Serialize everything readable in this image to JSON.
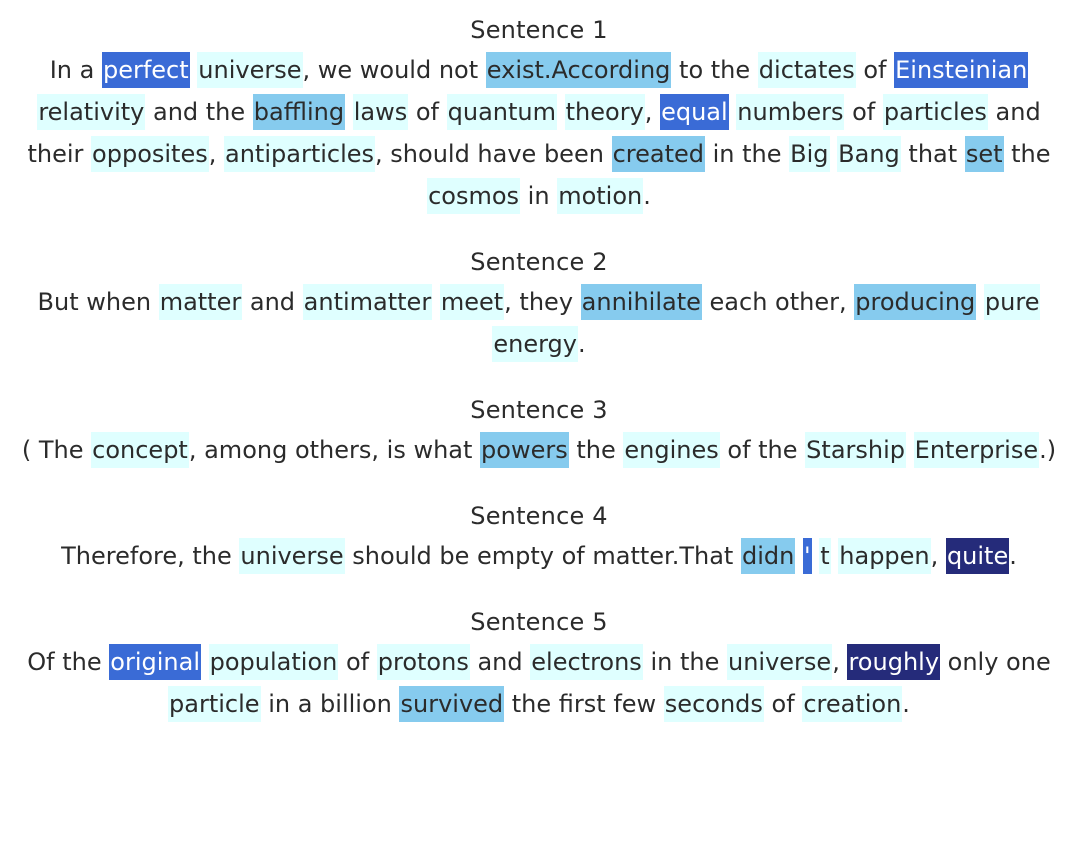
{
  "highlight_levels": {
    "0": "#ffffff",
    "1": "#dfffff",
    "2": "#86cbee",
    "3": "#3a6bd6",
    "4": "#252b7a"
  },
  "sentences": [
    {
      "heading": "Sentence 1",
      "tokens": [
        [
          "In",
          0
        ],
        [
          " a",
          0
        ],
        [
          " ",
          0
        ],
        [
          "perfect",
          3
        ],
        [
          " ",
          0
        ],
        [
          "universe",
          1
        ],
        [
          ", we would not",
          0
        ],
        [
          " ",
          0
        ],
        [
          "exist.According",
          2
        ],
        [
          " to the",
          0
        ],
        [
          " ",
          0
        ],
        [
          "dictates",
          1
        ],
        [
          " of",
          0
        ],
        [
          " ",
          0
        ],
        [
          "Einsteinian",
          3
        ],
        [
          " ",
          0
        ],
        [
          "relativity",
          1
        ],
        [
          " and the",
          0
        ],
        [
          " ",
          0
        ],
        [
          "baffling",
          2
        ],
        [
          " ",
          0
        ],
        [
          "laws",
          1
        ],
        [
          " of",
          0
        ],
        [
          " ",
          0
        ],
        [
          "quantum",
          1
        ],
        [
          " ",
          0
        ],
        [
          "theory",
          1
        ],
        [
          ",",
          0
        ],
        [
          " ",
          0
        ],
        [
          "equal",
          3
        ],
        [
          " ",
          0
        ],
        [
          "numbers",
          1
        ],
        [
          " of",
          0
        ],
        [
          " ",
          0
        ],
        [
          "particles",
          1
        ],
        [
          " and",
          0
        ],
        [
          " ",
          0
        ],
        [
          "their",
          0
        ],
        [
          " ",
          0
        ],
        [
          "opposites",
          1
        ],
        [
          ",",
          0
        ],
        [
          " ",
          0
        ],
        [
          "antiparticles",
          1
        ],
        [
          ", should have been",
          0
        ],
        [
          " ",
          0
        ],
        [
          "created",
          2
        ],
        [
          " in the",
          0
        ],
        [
          " ",
          0
        ],
        [
          "Big",
          1
        ],
        [
          " ",
          0
        ],
        [
          "Bang",
          1
        ],
        [
          " that",
          0
        ],
        [
          " ",
          0
        ],
        [
          "set",
          2
        ],
        [
          " the",
          0
        ],
        [
          " ",
          0
        ],
        [
          "cosmos",
          1
        ],
        [
          " in",
          0
        ],
        [
          " ",
          0
        ],
        [
          "motion",
          1
        ],
        [
          ".",
          0
        ]
      ]
    },
    {
      "heading": "Sentence 2",
      "tokens": [
        [
          "But when",
          0
        ],
        [
          " ",
          0
        ],
        [
          "matter",
          1
        ],
        [
          " and",
          0
        ],
        [
          " ",
          0
        ],
        [
          "antimatter",
          1
        ],
        [
          " ",
          0
        ],
        [
          "meet",
          1
        ],
        [
          ", they",
          0
        ],
        [
          " ",
          0
        ],
        [
          "annihilate",
          2
        ],
        [
          " each other,",
          0
        ],
        [
          " ",
          0
        ],
        [
          "producing",
          2
        ],
        [
          " ",
          0
        ],
        [
          "pure",
          1
        ],
        [
          " ",
          0
        ],
        [
          "energy",
          1
        ],
        [
          ".",
          0
        ]
      ]
    },
    {
      "heading": "Sentence 3",
      "tokens": [
        [
          "( The",
          0
        ],
        [
          " ",
          0
        ],
        [
          "concept",
          1
        ],
        [
          ", among others, is what",
          0
        ],
        [
          " ",
          0
        ],
        [
          "powers",
          2
        ],
        [
          " the",
          0
        ],
        [
          " ",
          0
        ],
        [
          "engines",
          1
        ],
        [
          " of the",
          0
        ],
        [
          " ",
          0
        ],
        [
          "Starship",
          1
        ],
        [
          " ",
          0
        ],
        [
          "Enterprise",
          1
        ],
        [
          ".)",
          0
        ]
      ]
    },
    {
      "heading": "Sentence 4",
      "tokens": [
        [
          "Therefore, the",
          0
        ],
        [
          " ",
          0
        ],
        [
          "universe",
          1
        ],
        [
          " should be empty of matter.That",
          0
        ],
        [
          " ",
          0
        ],
        [
          "didn",
          2
        ],
        [
          " ",
          0
        ],
        [
          "'",
          3
        ],
        [
          " ",
          0
        ],
        [
          "t",
          1
        ],
        [
          " ",
          0
        ],
        [
          "happen",
          1
        ],
        [
          ",",
          0
        ],
        [
          " ",
          0
        ],
        [
          "quite",
          4
        ],
        [
          ".",
          0
        ]
      ]
    },
    {
      "heading": "Sentence 5",
      "tokens": [
        [
          "Of the",
          0
        ],
        [
          " ",
          0
        ],
        [
          "original",
          3
        ],
        [
          " ",
          0
        ],
        [
          "population",
          1
        ],
        [
          " of",
          0
        ],
        [
          " ",
          0
        ],
        [
          "protons",
          1
        ],
        [
          " and",
          0
        ],
        [
          " ",
          0
        ],
        [
          "electrons",
          1
        ],
        [
          " in the",
          0
        ],
        [
          " ",
          0
        ],
        [
          "universe",
          1
        ],
        [
          ",",
          0
        ],
        [
          " ",
          0
        ],
        [
          "roughly",
          4
        ],
        [
          " only one",
          0
        ],
        [
          " ",
          0
        ],
        [
          "particle",
          1
        ],
        [
          " in a billion",
          0
        ],
        [
          " ",
          0
        ],
        [
          "survived",
          2
        ],
        [
          " the first few",
          0
        ],
        [
          " ",
          0
        ],
        [
          "seconds",
          1
        ],
        [
          " of",
          0
        ],
        [
          " ",
          0
        ],
        [
          "creation",
          1
        ],
        [
          ".",
          0
        ]
      ]
    }
  ]
}
